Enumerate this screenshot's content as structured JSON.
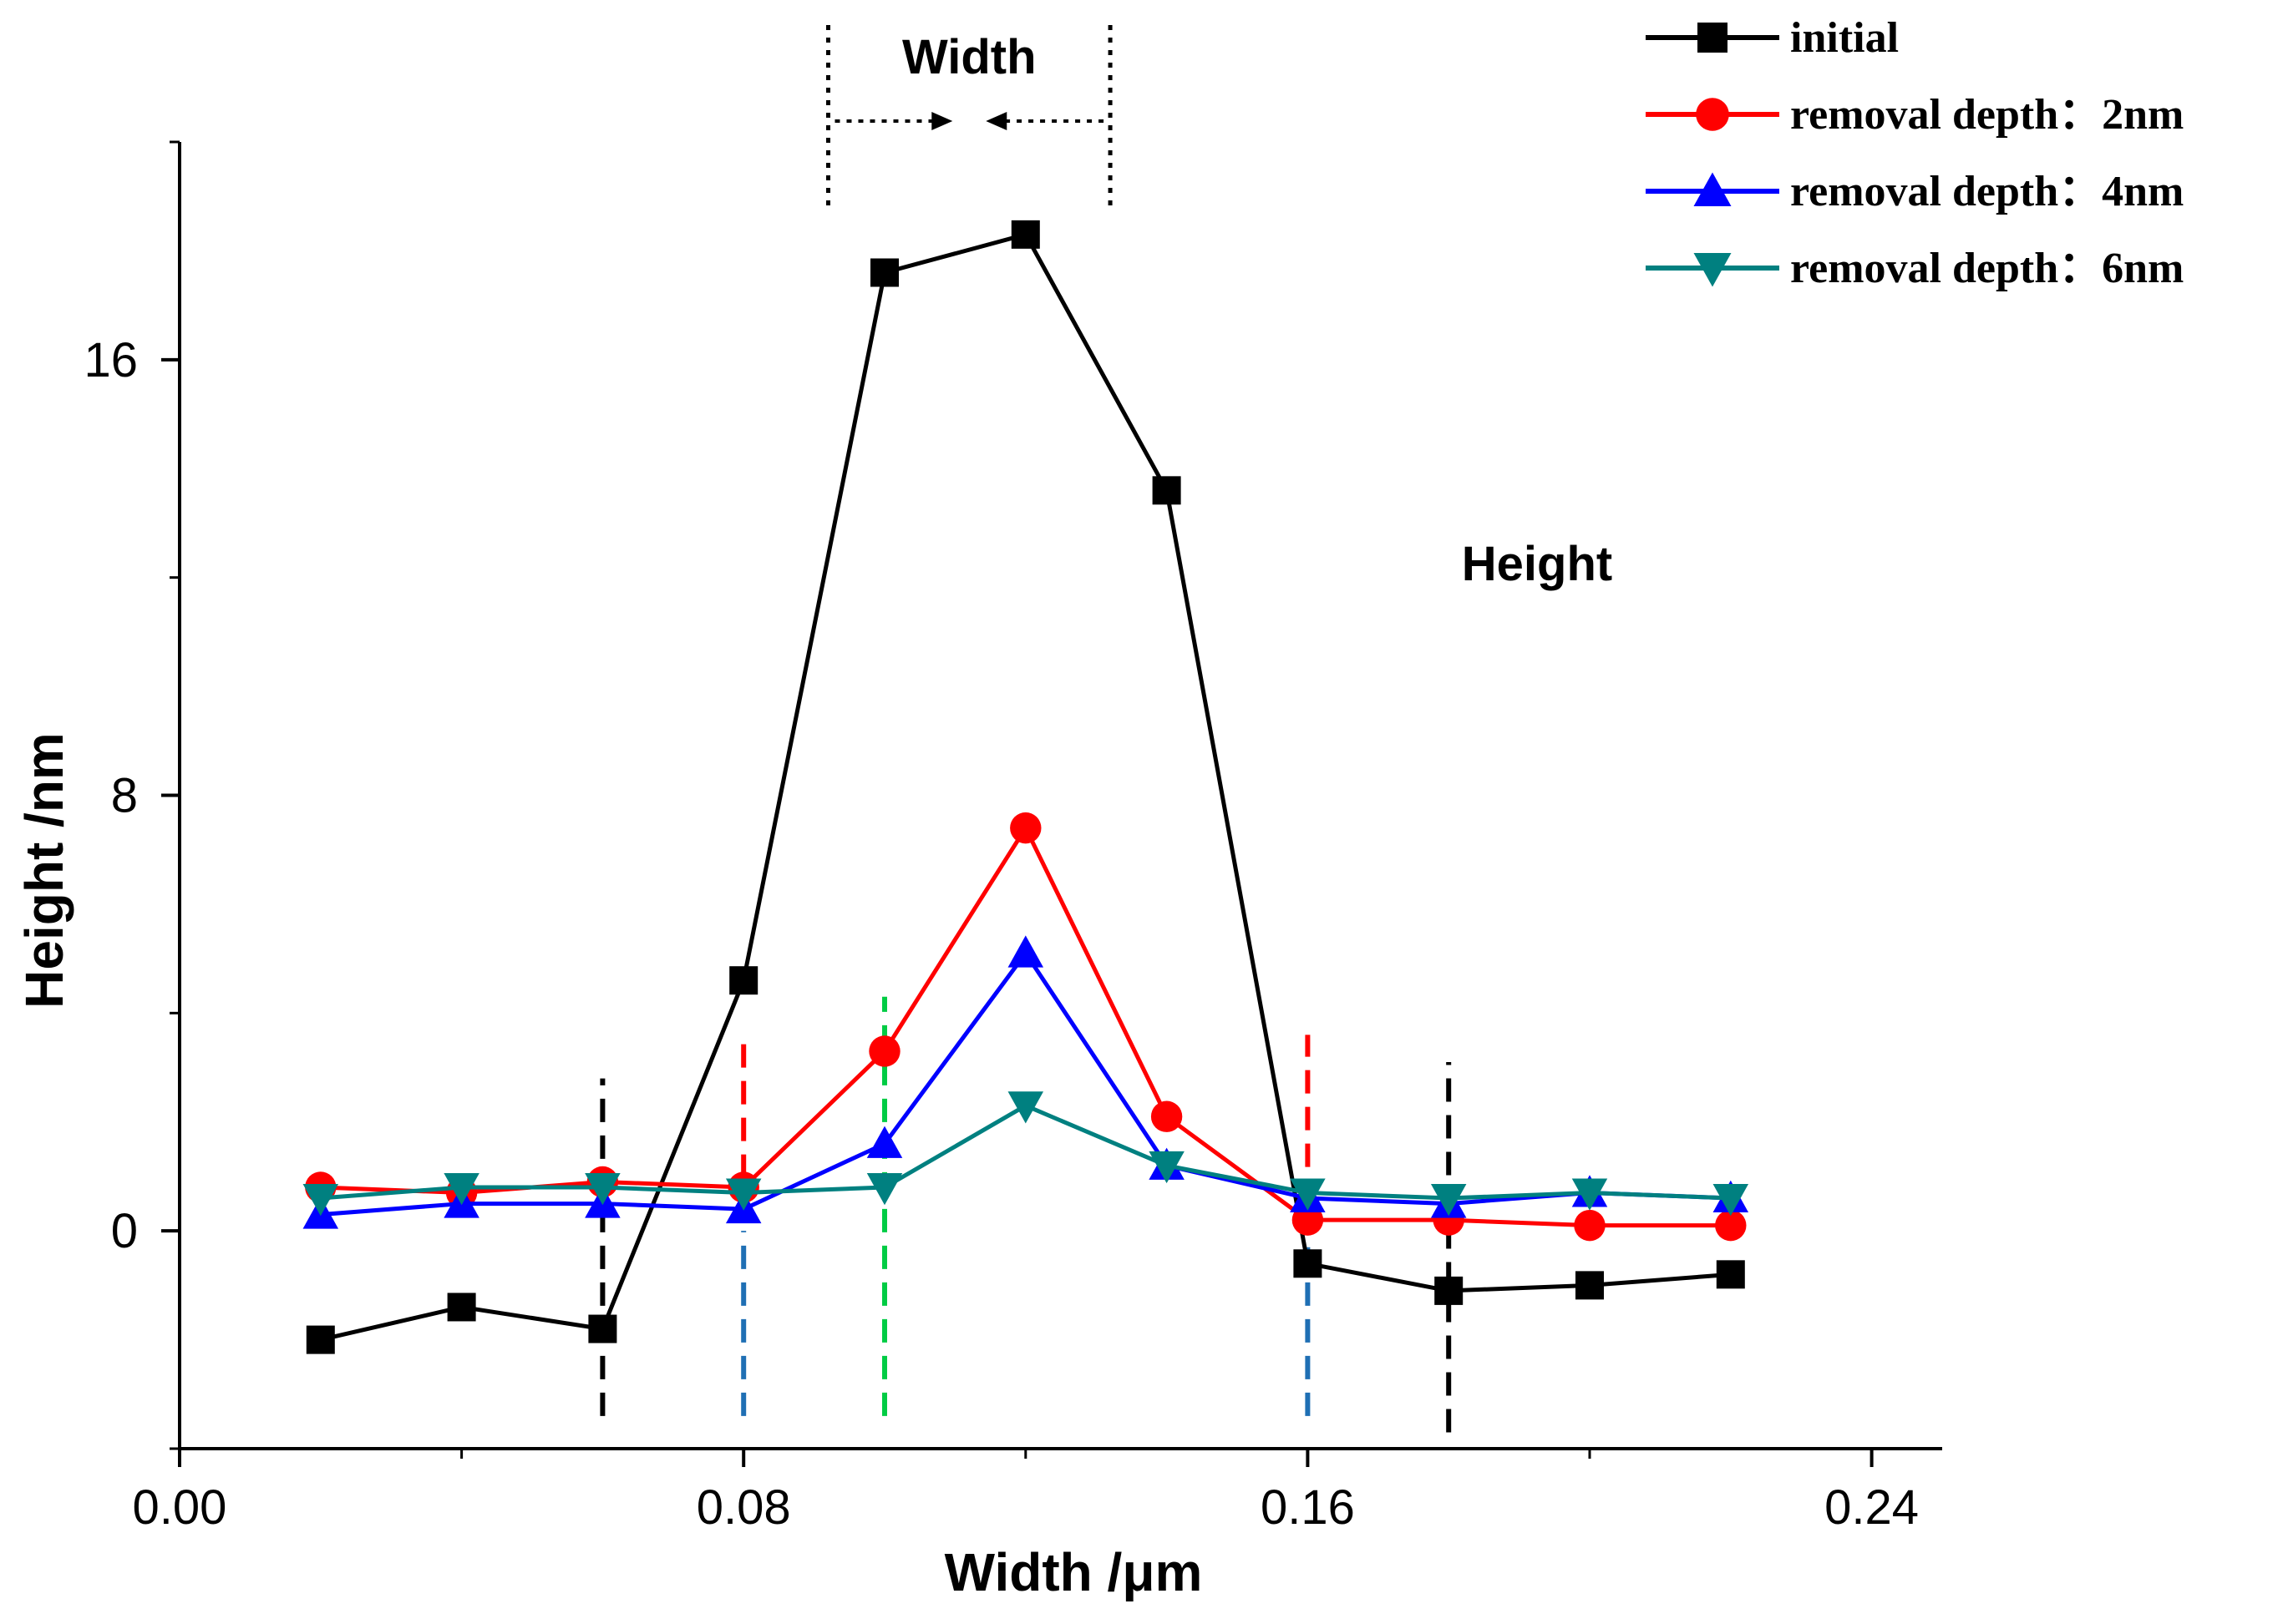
{
  "chart_data": {
    "type": "line",
    "xlabel": "Width /μm",
    "ylabel": "Height /nm",
    "xlim": [
      0,
      0.25
    ],
    "ylim": [
      -4,
      20
    ],
    "xticks": [
      0.0,
      0.08,
      0.16,
      0.24
    ],
    "xtick_labels": [
      "0.00",
      "0.08",
      "0.16",
      "0.24"
    ],
    "yticks": [
      0,
      8,
      16
    ],
    "ytick_labels": [
      "0",
      "8",
      "16"
    ],
    "legend_position": "top-right",
    "x": [
      0.02,
      0.04,
      0.06,
      0.08,
      0.1,
      0.12,
      0.14,
      0.16,
      0.18,
      0.2,
      0.22
    ],
    "series": [
      {
        "name": "initial",
        "color": "#000000",
        "marker": "square",
        "values": [
          -2.0,
          -1.4,
          -1.8,
          4.6,
          17.6,
          18.3,
          13.6,
          -0.6,
          -1.1,
          -1.0,
          -0.8
        ]
      },
      {
        "name": "removal depth：2nm",
        "color": "#ff0000",
        "marker": "circle",
        "values": [
          0.8,
          0.7,
          0.9,
          0.8,
          3.3,
          7.4,
          2.1,
          0.2,
          0.2,
          0.1,
          0.1
        ]
      },
      {
        "name": "removal depth：4nm",
        "color": "#0000ff",
        "marker": "triangle-up",
        "values": [
          0.3,
          0.5,
          0.5,
          0.4,
          1.6,
          5.1,
          1.2,
          0.6,
          0.5,
          0.7,
          0.6
        ]
      },
      {
        "name": "removal depth：6nm",
        "color": "#008080",
        "marker": "triangle-down",
        "values": [
          0.6,
          0.8,
          0.8,
          0.7,
          0.8,
          2.3,
          1.2,
          0.7,
          0.6,
          0.7,
          0.6
        ]
      }
    ],
    "reference_lines": [
      {
        "x": 0.06,
        "color": "#000000",
        "y_range": [
          -3.4,
          2.8
        ]
      },
      {
        "x": 0.18,
        "color": "#000000",
        "y_range": [
          -3.7,
          3.1
        ]
      },
      {
        "x": 0.08,
        "color": "#ff0000",
        "y_range": [
          0.3,
          3.6
        ]
      },
      {
        "x": 0.08,
        "color": "#1f6fb4",
        "y_range": [
          -3.4,
          0.0
        ]
      },
      {
        "x": 0.16,
        "color": "#ff0000",
        "y_range": [
          0.5,
          3.6
        ]
      },
      {
        "x": 0.16,
        "color": "#1f6fb4",
        "y_range": [
          -3.4,
          -0.3
        ]
      },
      {
        "x": 0.1,
        "color": "#00cc44",
        "y_range": [
          -3.4,
          4.3
        ]
      }
    ],
    "annotations": [
      {
        "text": "Width",
        "type": "span-arrows",
        "x_range": [
          0.092,
          0.132
        ]
      },
      {
        "text": "Height"
      }
    ]
  }
}
